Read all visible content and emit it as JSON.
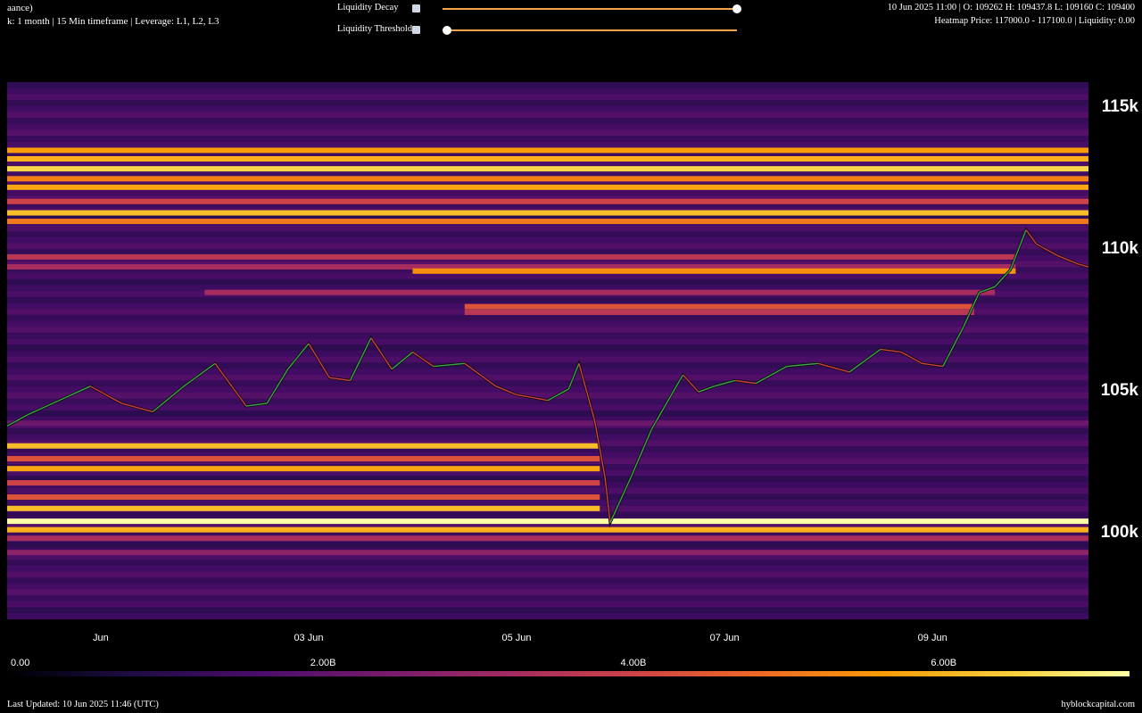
{
  "header": {
    "title_line1": "aance)",
    "title_line2": "k: 1 month | 15 Min timeframe | Leverage: L1, L2, L3",
    "ohlc": "10 Jun 2025 11:00 | O: 109262 H: 109437.8 L: 109160 C: 109400",
    "heatmap_info": "Heatmap Price: 117000.0 - 117100.0 | Liquidity: 0.00"
  },
  "controls": {
    "decay_label": "Liquidity Decay",
    "decay_value": 1.0,
    "threshold_label": "Liquidity Threshold",
    "threshold_value": 0.0
  },
  "footer": {
    "last_updated": "Last Updated: 10 Jun 2025 11:46 (UTC)",
    "brand": "hyblockcapital.com"
  },
  "chart_data": {
    "type": "heatmap",
    "y_ticks": [
      {
        "value": 115000,
        "label": "115k"
      },
      {
        "value": 110000,
        "label": "110k"
      },
      {
        "value": 105000,
        "label": "105k"
      },
      {
        "value": 100000,
        "label": "100k"
      }
    ],
    "x_ticks": [
      {
        "day": 1,
        "label": "Jun"
      },
      {
        "day": 3,
        "label": "03 Jun"
      },
      {
        "day": 5,
        "label": "05 Jun"
      },
      {
        "day": 7,
        "label": "07 Jun"
      },
      {
        "day": 9,
        "label": "09 Jun"
      }
    ],
    "x_range": [
      0.1,
      10.5
    ],
    "y_range": [
      97000,
      115900
    ],
    "colorbar": {
      "min": 0,
      "max": 7.2,
      "ticks": [
        {
          "value": 0,
          "label": "0.00"
        },
        {
          "value": 2,
          "label": "2.00B"
        },
        {
          "value": 4,
          "label": "4.00B"
        },
        {
          "value": 6,
          "label": "6.00B"
        }
      ]
    },
    "liquidity_bands": [
      {
        "price": 113500,
        "from": 0.1,
        "to": 10.5,
        "intensity": 0.78
      },
      {
        "price": 113200,
        "from": 0.1,
        "to": 10.5,
        "intensity": 0.82
      },
      {
        "price": 112850,
        "from": 0.1,
        "to": 10.5,
        "intensity": 0.9
      },
      {
        "price": 112500,
        "from": 0.1,
        "to": 10.5,
        "intensity": 0.72
      },
      {
        "price": 112200,
        "from": 0.1,
        "to": 10.5,
        "intensity": 0.8
      },
      {
        "price": 111700,
        "from": 0.1,
        "to": 10.5,
        "intensity": 0.55
      },
      {
        "price": 111300,
        "from": 0.1,
        "to": 10.5,
        "intensity": 0.85
      },
      {
        "price": 111000,
        "from": 0.1,
        "to": 10.5,
        "intensity": 0.7
      },
      {
        "price": 109750,
        "from": 0.1,
        "to": 9.8,
        "intensity": 0.5
      },
      {
        "price": 109400,
        "from": 0.1,
        "to": 9.8,
        "intensity": 0.45
      },
      {
        "price": 109250,
        "from": 4.0,
        "to": 9.8,
        "intensity": 0.75
      },
      {
        "price": 108500,
        "from": 2.0,
        "to": 9.6,
        "intensity": 0.45
      },
      {
        "price": 108000,
        "from": 4.5,
        "to": 9.4,
        "intensity": 0.6
      },
      {
        "price": 107800,
        "from": 4.5,
        "to": 9.4,
        "intensity": 0.5
      },
      {
        "price": 103900,
        "from": 0.1,
        "to": 10.5,
        "intensity": 0.3
      },
      {
        "price": 103100,
        "from": 0.1,
        "to": 5.8,
        "intensity": 0.85
      },
      {
        "price": 102650,
        "from": 0.1,
        "to": 5.8,
        "intensity": 0.6
      },
      {
        "price": 102300,
        "from": 0.1,
        "to": 5.8,
        "intensity": 0.8
      },
      {
        "price": 101800,
        "from": 0.1,
        "to": 5.8,
        "intensity": 0.55
      },
      {
        "price": 101300,
        "from": 0.1,
        "to": 5.8,
        "intensity": 0.6
      },
      {
        "price": 100900,
        "from": 0.1,
        "to": 5.8,
        "intensity": 0.85
      },
      {
        "price": 100450,
        "from": 0.1,
        "to": 10.5,
        "intensity": 1.0
      },
      {
        "price": 100150,
        "from": 0.1,
        "to": 10.5,
        "intensity": 0.82
      },
      {
        "price": 99850,
        "from": 0.1,
        "to": 10.5,
        "intensity": 0.45
      },
      {
        "price": 99350,
        "from": 0.1,
        "to": 10.5,
        "intensity": 0.38
      }
    ],
    "price_series": {
      "name": "",
      "x": [
        0.1,
        0.3,
        0.6,
        0.9,
        1.2,
        1.5,
        1.8,
        2.1,
        2.4,
        2.6,
        2.8,
        3.0,
        3.2,
        3.4,
        3.6,
        3.8,
        4.0,
        4.2,
        4.5,
        4.8,
        5.0,
        5.3,
        5.5,
        5.6,
        5.75,
        5.85,
        5.9,
        6.1,
        6.3,
        6.6,
        6.75,
        6.9,
        7.1,
        7.3,
        7.6,
        7.9,
        8.2,
        8.5,
        8.7,
        8.9,
        9.1,
        9.3,
        9.45,
        9.6,
        9.75,
        9.9,
        10.0,
        10.2,
        10.4,
        10.5
      ],
      "y": [
        103800,
        104200,
        104700,
        105200,
        104600,
        104300,
        105200,
        106000,
        104500,
        104600,
        105800,
        106700,
        105500,
        105400,
        106900,
        105800,
        106400,
        105900,
        106000,
        105200,
        104900,
        104700,
        105100,
        106000,
        104000,
        102000,
        100400,
        102000,
        103700,
        105600,
        105000,
        105200,
        105400,
        105300,
        105900,
        106000,
        105700,
        106500,
        106400,
        106000,
        105900,
        107300,
        108500,
        108700,
        109300,
        110700,
        110200,
        109800,
        109500,
        109400
      ]
    }
  }
}
